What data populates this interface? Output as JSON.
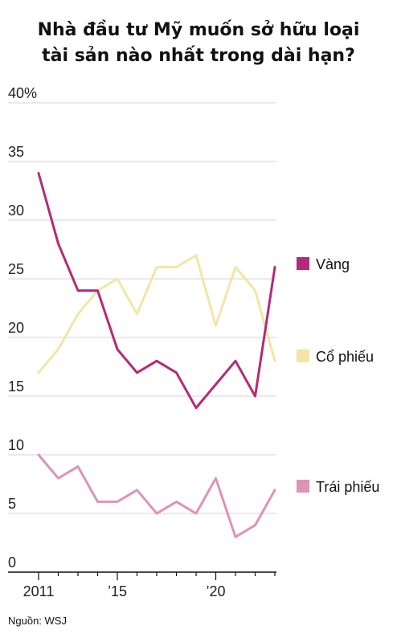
{
  "title_line1": "Nhà đầu tư Mỹ muốn sở hữu loại",
  "title_line2": "tài sản nào nhất trong dài hạn?",
  "source": "Nguồn: WSJ",
  "chart_data": {
    "type": "line",
    "title": "Nhà đầu tư Mỹ muốn sở hữu loại tài sản nào nhất trong dài hạn?",
    "x": [
      2011,
      2012,
      2013,
      2014,
      2015,
      2016,
      2017,
      2018,
      2019,
      2020,
      2021,
      2022,
      2023
    ],
    "x_ticks": [
      2011,
      2015,
      2020
    ],
    "x_tick_labels": [
      "2011",
      "’15",
      "’20"
    ],
    "ylim": [
      0,
      40
    ],
    "y_ticks": [
      0,
      5,
      10,
      15,
      20,
      25,
      30,
      35,
      40
    ],
    "y_tick_labels": [
      "0",
      "5",
      "10",
      "15",
      "20",
      "25",
      "30",
      "35",
      "40%"
    ],
    "grid": true,
    "legend_position": "right",
    "series": [
      {
        "name": "Vàng",
        "color": "#b52a78",
        "values": [
          34,
          28,
          24,
          24,
          19,
          17,
          18,
          17,
          14,
          16,
          18,
          15,
          26
        ]
      },
      {
        "name": "Cổ phiếu",
        "color": "#f2e6a6",
        "values": [
          17,
          19,
          22,
          24,
          25,
          22,
          26,
          26,
          27,
          21,
          26,
          24,
          18
        ]
      },
      {
        "name": "Trái phiếu",
        "color": "#dd94b5",
        "values": [
          10,
          8,
          9,
          6,
          6,
          7,
          5,
          6,
          5,
          8,
          3,
          4,
          7
        ]
      }
    ]
  }
}
